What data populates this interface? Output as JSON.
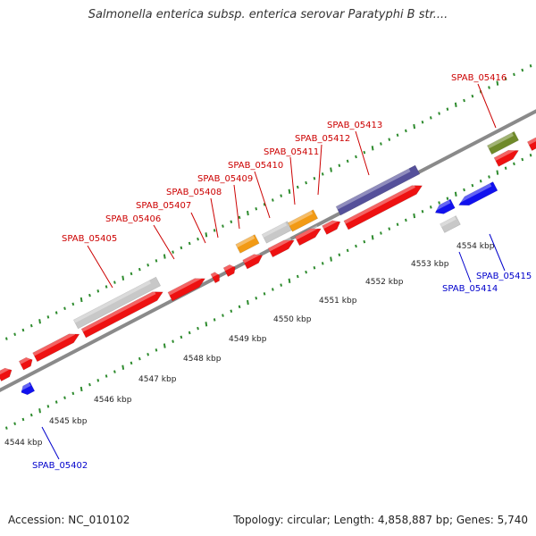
{
  "title": "Salmonella enterica subsp. enterica serovar Paratyphi B str....",
  "footer": {
    "accession": "Accession: NC_010102",
    "summary": "Topology: circular; Length: 4,858,887 bp; Genes: 5,740"
  },
  "colors": {
    "backbone": "#8a8a8a",
    "tick_green": "#2e8b2e",
    "gene_red": "#ee1111",
    "gene_blue": "#1111ee",
    "gene_gray": "#c8c8c8",
    "gene_orange": "#f29a14",
    "gene_purple": "#55509a",
    "gene_olive": "#6f8a2a",
    "label_red": "#cc0000",
    "label_blue": "#0000cc"
  },
  "kbp_labels": [
    "4544 kbp",
    "4545 kbp",
    "4546 kbp",
    "4547 kbp",
    "4548 kbp",
    "4549 kbp",
    "4550 kbp",
    "4551 kbp",
    "4552 kbp",
    "4553 kbp",
    "4554 kbp"
  ],
  "genes_top": [
    "SPAB_05405",
    "SPAB_05406",
    "SPAB_05407",
    "SPAB_05408",
    "SPAB_05409",
    "SPAB_05410",
    "SPAB_05411",
    "SPAB_05412",
    "SPAB_05413",
    "SPAB_05416"
  ],
  "genes_bottom": [
    "SPAB_05402",
    "SPAB_05414",
    "SPAB_05415"
  ]
}
